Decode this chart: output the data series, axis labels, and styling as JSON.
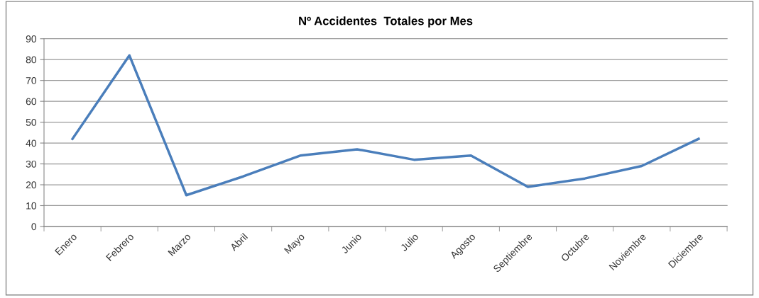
{
  "chart_data": {
    "type": "line",
    "title": "Nº Accidentes  Totales por Mes",
    "categories": [
      "Enero",
      "Febrero",
      "Marzo",
      "Abril",
      "Mayo",
      "Junio",
      "Julio",
      "Agosto",
      "Septiembre",
      "Octubre",
      "Noviembre",
      "Diciembre"
    ],
    "series": [
      {
        "color": "#4a7ebb",
        "values": [
          42,
          82,
          15,
          24,
          34,
          37,
          32,
          34,
          19,
          23,
          29,
          42
        ]
      }
    ],
    "ylim": [
      0,
      90
    ],
    "yticks": [
      0,
      10,
      20,
      30,
      40,
      50,
      60,
      70,
      80,
      90
    ],
    "grid": "y",
    "marker": "none",
    "line_style": "solid"
  }
}
